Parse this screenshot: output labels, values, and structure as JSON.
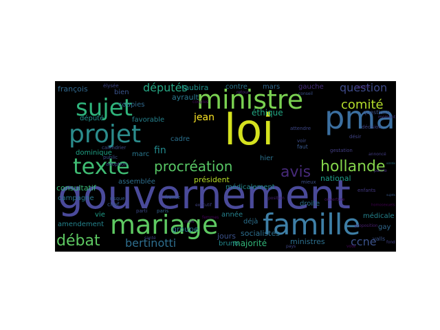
{
  "wordcloud": {
    "words": [
      {
        "text": "pma",
        "color": "#3b6fa0"
      },
      {
        "text": "gouvernement",
        "color": "#4a4a9a"
      },
      {
        "text": "loi",
        "color": "#d5e21f"
      },
      {
        "text": "ministre",
        "color": "#7ad151"
      },
      {
        "text": "famille",
        "color": "#3e7fa6"
      },
      {
        "text": "mariage",
        "color": "#5ec962"
      },
      {
        "text": "texte",
        "color": "#3fbc73"
      },
      {
        "text": "sujet",
        "color": "#2fb47c"
      },
      {
        "text": "projet",
        "color": "#2b8c8c"
      },
      {
        "text": "procréation",
        "color": "#58c765"
      },
      {
        "text": "hollande",
        "color": "#84d44b"
      },
      {
        "text": "comité",
        "color": "#b5de2b"
      },
      {
        "text": "avis",
        "color": "#472a7a"
      },
      {
        "text": "débat",
        "color": "#5ec962"
      },
      {
        "text": "bertinotti",
        "color": "#2e6e8e"
      },
      {
        "text": "députés",
        "color": "#26a784"
      },
      {
        "text": "question",
        "color": "#3e4a89"
      },
      {
        "text": "ccne",
        "color": "#3b528b"
      },
      {
        "text": "taubira",
        "color": "#20928c"
      },
      {
        "text": "jean",
        "color": "#fde725"
      },
      {
        "text": "françois",
        "color": "#31688e"
      },
      {
        "text": "ayrault",
        "color": "#2a788e"
      },
      {
        "text": "éthique",
        "color": "#22a884"
      },
      {
        "text": "fin",
        "color": "#238a8d"
      },
      {
        "text": "national",
        "color": "#1f9e89"
      },
      {
        "text": "président",
        "color": "#b8de29"
      },
      {
        "text": "médicalement",
        "color": "#238a8d"
      },
      {
        "text": "majorité",
        "color": "#32b67a"
      },
      {
        "text": "ministres",
        "color": "#2d708e"
      },
      {
        "text": "consultatif",
        "color": "#3aba76"
      },
      {
        "text": "assistée",
        "color": "#2a788e"
      },
      {
        "text": "gauche",
        "color": "#472d7b"
      },
      {
        "text": "mars",
        "color": "#31688e"
      },
      {
        "text": "hier",
        "color": "#2c728e"
      },
      {
        "text": "favorable",
        "color": "#26828e"
      },
      {
        "text": "coupies",
        "color": "#30698e"
      },
      {
        "text": "dominique",
        "color": "#20a386"
      },
      {
        "text": "député",
        "color": "#21918c"
      },
      {
        "text": "marc",
        "color": "#2a788e"
      },
      {
        "text": "jours",
        "color": "#3b528b"
      },
      {
        "text": "socialistes",
        "color": "#2d708e"
      },
      {
        "text": "amendement",
        "color": "#25848e"
      },
      {
        "text": "vie",
        "color": "#1f9e89"
      },
      {
        "text": "groupe",
        "color": "#2a788e"
      },
      {
        "text": "bruno",
        "color": "#23898e"
      },
      {
        "text": "droite",
        "color": "#2c728e"
      },
      {
        "text": "médicale",
        "color": "#25838e"
      },
      {
        "text": "gay",
        "color": "#31688e"
      },
      {
        "text": "année",
        "color": "#26828e"
      },
      {
        "text": "contre",
        "color": "#2a768e"
      },
      {
        "text": "assemblée",
        "color": "#2e6f8e"
      },
      {
        "text": "campagne",
        "color": "#2a788e"
      },
      {
        "text": "cadre",
        "color": "#2c718e"
      },
      {
        "text": "bien",
        "color": "#3a548c"
      },
      {
        "text": "déjà",
        "color": "#2d708e"
      },
      {
        "text": "questions",
        "color": "#3b528b"
      },
      {
        "text": "parti",
        "color": "#3e4a89"
      },
      {
        "text": "chef",
        "color": "#39568c"
      },
      {
        "text": "faut",
        "color": "#38588c"
      },
      {
        "text": "valls",
        "color": "#3a548c"
      },
      {
        "text": "france",
        "color": "#355f8d"
      },
      {
        "text": "public",
        "color": "#3b528b"
      },
      {
        "text": "adoption",
        "color": "#3e4989"
      },
      {
        "text": "paris",
        "color": "#33638d"
      },
      {
        "text": "risque",
        "color": "#365d8d"
      },
      {
        "text": "fond",
        "color": "#424086"
      },
      {
        "text": "calendrier",
        "color": "#3d4e8a"
      },
      {
        "text": "sujets",
        "color": "#38598c"
      },
      {
        "text": "élysée",
        "color": "#3f4788"
      },
      {
        "text": "décision",
        "color": "#404688"
      },
      {
        "text": "désir",
        "color": "#414487"
      },
      {
        "text": "enfants",
        "color": "#443983"
      },
      {
        "text": "gestation",
        "color": "#433e85"
      },
      {
        "text": "attendre",
        "color": "#3f4889"
      },
      {
        "text": "mieux",
        "color": "#3c4f8a"
      },
      {
        "text": "voir",
        "color": "#3d4d8a"
      },
      {
        "text": "exécutif",
        "color": "#414287"
      },
      {
        "text": "annoncé",
        "color": "#433d84"
      },
      {
        "text": "moment",
        "color": "#453781"
      },
      {
        "text": "parole",
        "color": "#46327e"
      },
      {
        "text": "rapport",
        "color": "#482576"
      },
      {
        "text": "proposition",
        "color": "#481f70"
      },
      {
        "text": "ouverture",
        "color": "#471365"
      },
      {
        "text": "couples",
        "color": "#46085c"
      },
      {
        "text": "femmes",
        "color": "#450559"
      },
      {
        "text": "homosexuels",
        "color": "#440154"
      },
      {
        "text": "retour",
        "color": "#482878"
      },
      {
        "text": "position",
        "color": "#482173"
      },
      {
        "text": "mois",
        "color": "#48186a"
      },
      {
        "text": "vote",
        "color": "#46075a"
      },
      {
        "text": "conseil",
        "color": "#3b528b"
      },
      {
        "text": "pays",
        "color": "#404688"
      },
      {
        "text": "santé",
        "color": "#414487"
      }
    ]
  }
}
